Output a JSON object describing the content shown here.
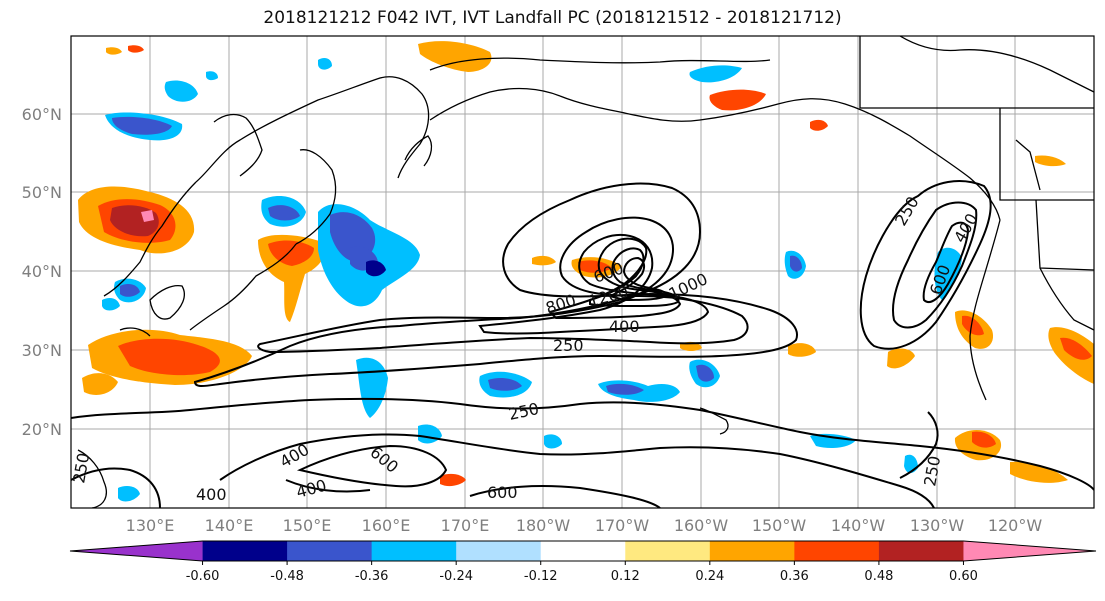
{
  "title": "2018121212 F042 IVT, IVT Landfall PC (2018121512 - 2018121712)",
  "lat_labels": [
    "60°N",
    "50°N",
    "40°N",
    "30°N",
    "20°N"
  ],
  "lon_labels": [
    "130°E",
    "140°E",
    "150°E",
    "160°E",
    "170°E",
    "180°W",
    "170°W",
    "160°W",
    "150°W",
    "140°W",
    "130°W",
    "120°W"
  ],
  "contour_labels": [
    "250",
    "400",
    "600",
    "800",
    "1000",
    "1200",
    "250",
    "400",
    "600",
    "250",
    "400",
    "600",
    "400",
    "600",
    "250",
    "250",
    "600"
  ],
  "colorbar": {
    "colors": [
      "#9932cc",
      "#00008b",
      "#3a55cc",
      "#00bfff",
      "#b0e0ff",
      "#ffffff",
      "#ffe980",
      "#ffa500",
      "#ff4500",
      "#b22222",
      "#ff89b4"
    ],
    "tick_labels": [
      "-0.60",
      "-0.48",
      "-0.36",
      "-0.24",
      "-0.12",
      "0.12",
      "0.24",
      "0.36",
      "0.48",
      "0.60"
    ]
  }
}
